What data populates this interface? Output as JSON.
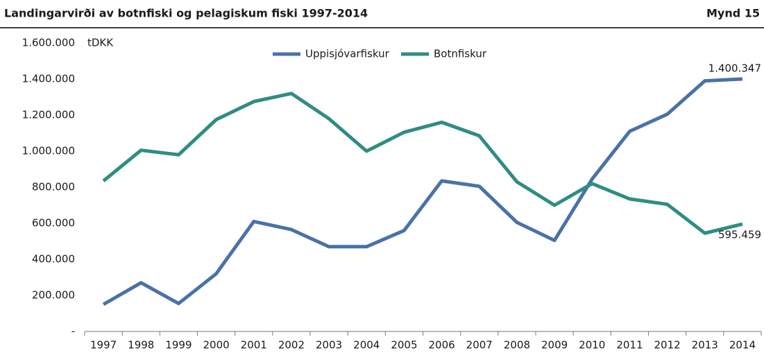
{
  "chart_data": {
    "type": "line",
    "title": "Landingarvirði av botnfiski og pelagiskum fiski 1997-2014",
    "figure_label": "Mynd 15",
    "unit_label": "tDKK",
    "categories": [
      "1997",
      "1998",
      "1999",
      "2000",
      "2001",
      "2002",
      "2003",
      "2004",
      "2005",
      "2006",
      "2007",
      "2008",
      "2009",
      "2010",
      "2011",
      "2012",
      "2013",
      "2014"
    ],
    "series": [
      {
        "name": "Uppisjóvarfiskur",
        "color": "#4a71a9",
        "values": [
          150000,
          270000,
          155000,
          320000,
          610000,
          565000,
          470000,
          470000,
          560000,
          835000,
          805000,
          605000,
          505000,
          845000,
          1110000,
          1205000,
          1390000,
          1400347
        ],
        "value_labels": [
          null,
          null,
          null,
          null,
          null,
          null,
          null,
          null,
          null,
          null,
          null,
          null,
          null,
          null,
          null,
          null,
          null,
          "1.400.347"
        ]
      },
      {
        "name": "Botnfiskur",
        "color": "#2f8d82",
        "values": [
          835000,
          1005000,
          980000,
          1175000,
          1275000,
          1320000,
          1180000,
          1000000,
          1105000,
          1160000,
          1085000,
          830000,
          700000,
          820000,
          735000,
          705000,
          545000,
          595459
        ],
        "value_labels": [
          null,
          null,
          null,
          null,
          null,
          null,
          null,
          null,
          null,
          null,
          null,
          null,
          null,
          null,
          null,
          null,
          null,
          "595.459"
        ]
      }
    ],
    "ylim": [
      0,
      1600000
    ],
    "yticks": [
      {
        "value": 0,
        "label": "-"
      },
      {
        "value": 200000,
        "label": "200.000"
      },
      {
        "value": 400000,
        "label": "400.000"
      },
      {
        "value": 600000,
        "label": "600.000"
      },
      {
        "value": 800000,
        "label": "800.000"
      },
      {
        "value": 1000000,
        "label": "1.000.000"
      },
      {
        "value": 1200000,
        "label": "1.200.000"
      },
      {
        "value": 1400000,
        "label": "1.400.000"
      },
      {
        "value": 1600000,
        "label": "1.600.000"
      }
    ],
    "grid": false,
    "legend": "top"
  }
}
